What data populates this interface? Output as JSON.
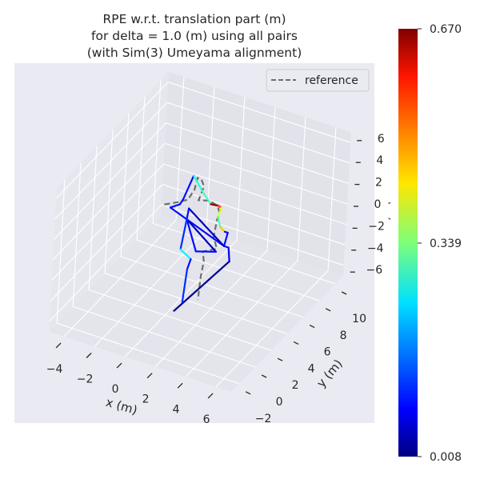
{
  "chart_data": {
    "type": "line3d",
    "title": [
      "RPE w.r.t. translation part (m)",
      "for delta = 1.0 (m) using all pairs",
      "(with Sim(3) Umeyama alignment)"
    ],
    "xlabel": "x (m)",
    "ylabel": "y (m)",
    "zlabel": "z (m)",
    "xlim": [
      -5,
      7
    ],
    "ylim": [
      -3,
      11
    ],
    "zlim": [
      -7,
      7
    ],
    "xticks": [
      -4,
      -2,
      0,
      2,
      4,
      6
    ],
    "yticks": [
      -2,
      0,
      2,
      4,
      6,
      8,
      10
    ],
    "zticks": [
      -6,
      -4,
      -2,
      0,
      2,
      4,
      6
    ],
    "grid": true,
    "legend": {
      "position": "top-right",
      "entries": [
        "reference"
      ]
    },
    "colorbar": {
      "colormap": "jet",
      "min": 0.008,
      "max": 0.67,
      "ticks": [
        "0.008",
        "0.339",
        "0.670"
      ]
    },
    "reference_color": "#6e6e6e",
    "reference": {
      "x": [
        -1.4,
        -0.6,
        0.1,
        0.5,
        0.65,
        0.9,
        1.1,
        0.8,
        1.5,
        2.05,
        2.2,
        2.05,
        1.9,
        2.15,
        1.25,
        1.35,
        1.2,
        1.1
      ],
      "y": [
        4,
        4,
        4,
        4,
        4,
        4,
        4,
        4,
        4,
        4,
        4,
        4,
        4,
        4,
        4,
        4,
        4,
        4
      ],
      "z": [
        1.5,
        2.1,
        2.7,
        3.9,
        5.1,
        5.1,
        4.5,
        3.0,
        3.3,
        3.05,
        2.45,
        1.66,
        -0.1,
        -1.07,
        -1.8,
        -2.7,
        -4.35,
        -6.6
      ]
    },
    "estimate": {
      "x": [
        -0.4,
        3.0,
        2.9,
        2.6,
        -1.0,
        -0.4,
        -0.2,
        0.4,
        1.0,
        1.6,
        2.1,
        2.3,
        2.1,
        2.3,
        2.6,
        2.8,
        2.6,
        0.2,
        0.1,
        2.1,
        0.8,
        0.1,
        -0.2,
        0.5,
        0.3,
        0.1
      ],
      "y": [
        4,
        4,
        4,
        4,
        4,
        4,
        4,
        4,
        4,
        4,
        4,
        4,
        4,
        4,
        4,
        4,
        4,
        4,
        4,
        4,
        4,
        4,
        4,
        4,
        4,
        4
      ],
      "z": [
        -8.4,
        -1.9,
        -0.6,
        -0.6,
        1.4,
        2.0,
        2.6,
        5.2,
        4.0,
        3.0,
        3.1,
        3.0,
        2.0,
        1.1,
        0.8,
        0.8,
        -0.6,
        1.9,
        0.8,
        -1.4,
        -2.0,
        0.8,
        -2.3,
        -2.9,
        -4.0,
        -7.3
      ],
      "segment_error": [
        0.02,
        0.08,
        0.1,
        0.1,
        0.1,
        0.1,
        0.1,
        0.28,
        0.3,
        0.66,
        0.55,
        0.4,
        0.3,
        0.46,
        0.1,
        0.1,
        0.05,
        0.1,
        0.05,
        0.1,
        0.1,
        0.12,
        0.25,
        0.1,
        0.12
      ]
    }
  }
}
